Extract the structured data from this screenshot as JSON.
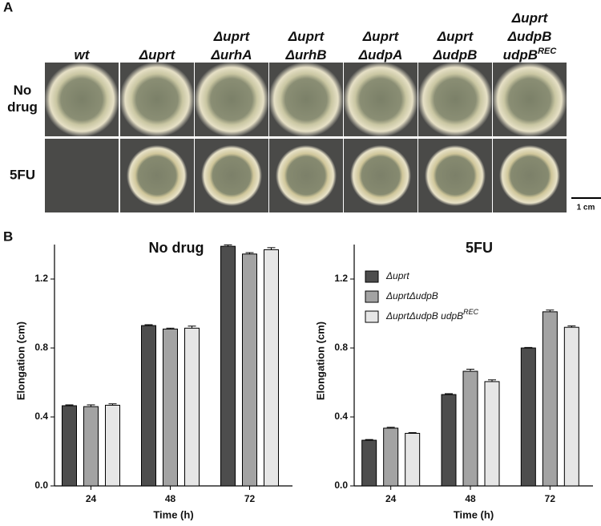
{
  "panel_a": {
    "label": "A",
    "columns": [
      {
        "lines": [
          "wt"
        ]
      },
      {
        "lines": [
          "Δuprt"
        ]
      },
      {
        "lines": [
          "Δuprt",
          "ΔurhA"
        ]
      },
      {
        "lines": [
          "Δuprt",
          "ΔurhB"
        ]
      },
      {
        "lines": [
          "Δuprt",
          "ΔudpA"
        ]
      },
      {
        "lines": [
          "Δuprt",
          "ΔudpB"
        ]
      },
      {
        "lines": [
          "Δuprt",
          "ΔudpB",
          "udpB"
        ],
        "superscript": "REC"
      }
    ],
    "rows": [
      {
        "lines": [
          "No",
          "drug"
        ]
      },
      {
        "lines": [
          "5FU"
        ]
      }
    ],
    "scale_bar": "1 cm"
  },
  "panel_b": {
    "label": "B"
  },
  "chart_data": [
    {
      "type": "bar",
      "title": "No drug",
      "x_label": "Time (h)",
      "y_label": "Elongation (cm)",
      "categories": [
        "24",
        "48",
        "72"
      ],
      "series": [
        {
          "color": "#4d4d4d",
          "values": [
            0.465,
            0.93,
            1.39
          ],
          "errors": [
            0.005,
            0.005,
            0.008
          ]
        },
        {
          "color": "#a3a3a3",
          "values": [
            0.46,
            0.91,
            1.345
          ],
          "errors": [
            0.01,
            0.005,
            0.008
          ]
        },
        {
          "color": "#e6e6e6",
          "values": [
            0.468,
            0.915,
            1.37
          ],
          "errors": [
            0.008,
            0.012,
            0.012
          ]
        }
      ],
      "ylim": [
        0,
        1.4
      ],
      "yticks": [
        {
          "value": 0,
          "label": "0.0"
        },
        0.4,
        0.8,
        1.2
      ]
    },
    {
      "type": "bar",
      "title": "5FU",
      "x_label": "Time (h)",
      "y_label": "Elongation (cm)",
      "categories": [
        "24",
        "48",
        "72"
      ],
      "series": [
        {
          "name": "Δuprt",
          "color": "#4d4d4d",
          "values": [
            0.265,
            0.53,
            0.8
          ],
          "errors": [
            0.004,
            0.005,
            0.003
          ]
        },
        {
          "name": "ΔuprtΔudpB",
          "color": "#a3a3a3",
          "values": [
            0.335,
            0.665,
            1.01
          ],
          "errors": [
            0.005,
            0.012,
            0.01
          ]
        },
        {
          "name": "ΔuprtΔudpB udpB",
          "name_superscript": "REC",
          "color": "#e6e6e6",
          "values": [
            0.305,
            0.605,
            0.92
          ],
          "errors": [
            0.004,
            0.01,
            0.008
          ]
        }
      ],
      "ylim": [
        0,
        1.4
      ],
      "yticks": [
        {
          "value": 0,
          "label": "0.0"
        },
        0.4,
        0.8,
        1.2
      ],
      "legend": "upper left"
    }
  ]
}
